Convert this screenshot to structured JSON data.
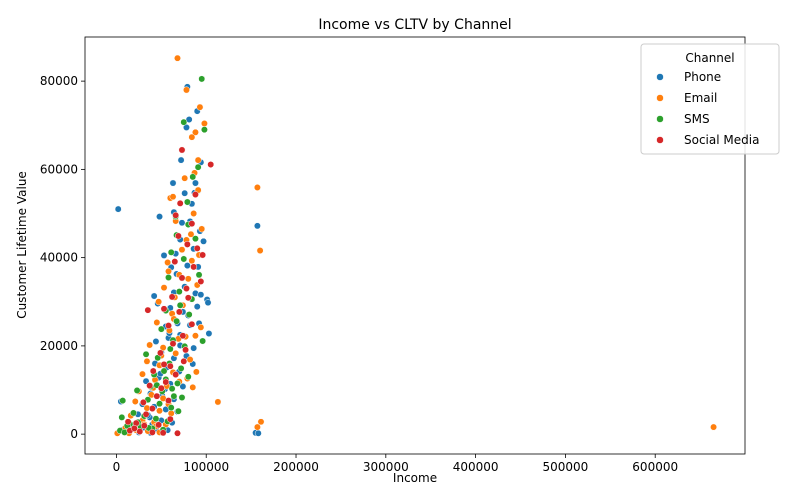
{
  "chart_data": {
    "type": "scatter",
    "title": "Income vs CLTV by Channel",
    "xlabel": "Income",
    "ylabel": "Customer Lifetime Value",
    "xlim": [
      -35000,
      700000
    ],
    "ylim": [
      -4500,
      90000
    ],
    "xticks": [
      0,
      100000,
      200000,
      300000,
      400000,
      500000,
      600000
    ],
    "yticks": [
      0,
      20000,
      40000,
      60000,
      80000
    ],
    "grid": false,
    "legend": {
      "title": "Channel",
      "placement": "top-right"
    },
    "series": [
      {
        "name": "Phone",
        "color": "#1f77b4",
        "points": [
          [
            2000,
            51000
          ],
          [
            79000,
            78700
          ],
          [
            81000,
            71300
          ],
          [
            78000,
            69500
          ],
          [
            90000,
            73200
          ],
          [
            94000,
            61600
          ],
          [
            72000,
            62100
          ],
          [
            63000,
            56900
          ],
          [
            76000,
            54600
          ],
          [
            88000,
            56900
          ],
          [
            87000,
            54700
          ],
          [
            91000,
            55200
          ],
          [
            48000,
            49300
          ],
          [
            64000,
            50300
          ],
          [
            73000,
            47900
          ],
          [
            82000,
            48200
          ],
          [
            93000,
            46000
          ],
          [
            97000,
            43700
          ],
          [
            53000,
            40500
          ],
          [
            71000,
            44100
          ],
          [
            86000,
            42000
          ],
          [
            61000,
            37800
          ],
          [
            79000,
            38200
          ],
          [
            91000,
            37900
          ],
          [
            157000,
            47200
          ],
          [
            42000,
            31300
          ],
          [
            64000,
            32100
          ],
          [
            76000,
            33400
          ],
          [
            88000,
            31900
          ],
          [
            101000,
            30500
          ],
          [
            102000,
            29800
          ],
          [
            60000,
            28600
          ],
          [
            74000,
            27700
          ],
          [
            90000,
            28900
          ],
          [
            55000,
            24400
          ],
          [
            68000,
            25100
          ],
          [
            82000,
            24700
          ],
          [
            103000,
            22800
          ],
          [
            44000,
            21000
          ],
          [
            58000,
            21800
          ],
          [
            71000,
            22500
          ],
          [
            86000,
            19500
          ],
          [
            50000,
            18500
          ],
          [
            64000,
            17200
          ],
          [
            78000,
            17700
          ],
          [
            43000,
            16000
          ],
          [
            56000,
            15100
          ],
          [
            70000,
            14200
          ],
          [
            85000,
            15900
          ],
          [
            33000,
            12000
          ],
          [
            47000,
            12800
          ],
          [
            60000,
            11400
          ],
          [
            74000,
            10800
          ],
          [
            38000,
            9200
          ],
          [
            51000,
            8700
          ],
          [
            64000,
            7900
          ],
          [
            29000,
            6800
          ],
          [
            42000,
            6200
          ],
          [
            55000,
            5600
          ],
          [
            68000,
            5100
          ],
          [
            5000,
            7400
          ],
          [
            24000,
            4500
          ],
          [
            37000,
            3800
          ],
          [
            50000,
            3100
          ],
          [
            62000,
            2600
          ],
          [
            18000,
            2000
          ],
          [
            31000,
            1500
          ],
          [
            44000,
            1200
          ],
          [
            57000,
            900
          ],
          [
            12000,
            600
          ],
          [
            25000,
            400
          ],
          [
            38000,
            300
          ],
          [
            155000,
            300
          ],
          [
            158000,
            200
          ],
          [
            8000,
            1100
          ],
          [
            46000,
            29600
          ],
          [
            67000,
            36300
          ],
          [
            84000,
            52200
          ],
          [
            94000,
            31600
          ],
          [
            59000,
            22900
          ],
          [
            80000,
            26900
          ],
          [
            92000,
            25100
          ],
          [
            66000,
            40900
          ],
          [
            49000,
            13700
          ],
          [
            71000,
            20100
          ],
          [
            54000,
            10200
          ],
          [
            35000,
            4300
          ],
          [
            60000,
            3500
          ],
          [
            20000,
            1100
          ],
          [
            40000,
            2200
          ]
        ]
      },
      {
        "name": "Email",
        "color": "#ff7f0e",
        "points": [
          [
            68000,
            85200
          ],
          [
            78000,
            78000
          ],
          [
            93000,
            74100
          ],
          [
            98000,
            70400
          ],
          [
            88000,
            68400
          ],
          [
            84000,
            67300
          ],
          [
            91000,
            62100
          ],
          [
            60000,
            53500
          ],
          [
            87000,
            59200
          ],
          [
            76000,
            58000
          ],
          [
            86000,
            50000
          ],
          [
            157000,
            55900
          ],
          [
            66000,
            48300
          ],
          [
            95000,
            46500
          ],
          [
            78000,
            44000
          ],
          [
            160000,
            41600
          ],
          [
            57000,
            38900
          ],
          [
            84000,
            39300
          ],
          [
            70000,
            36100
          ],
          [
            90000,
            33800
          ],
          [
            53000,
            33200
          ],
          [
            65000,
            31000
          ],
          [
            80000,
            35200
          ],
          [
            47000,
            30000
          ],
          [
            62000,
            27300
          ],
          [
            74000,
            29200
          ],
          [
            94000,
            24200
          ],
          [
            45000,
            25300
          ],
          [
            59000,
            23500
          ],
          [
            69000,
            21600
          ],
          [
            88000,
            22300
          ],
          [
            37000,
            20200
          ],
          [
            52000,
            19600
          ],
          [
            66000,
            18300
          ],
          [
            82000,
            16900
          ],
          [
            34000,
            16500
          ],
          [
            48000,
            15600
          ],
          [
            63000,
            14000
          ],
          [
            79000,
            12600
          ],
          [
            89000,
            14100
          ],
          [
            29000,
            13600
          ],
          [
            43000,
            12300
          ],
          [
            56000,
            10900
          ],
          [
            85000,
            10600
          ],
          [
            25000,
            9700
          ],
          [
            39000,
            8900
          ],
          [
            52000,
            8100
          ],
          [
            113000,
            7300
          ],
          [
            21000,
            7400
          ],
          [
            34000,
            5900
          ],
          [
            48000,
            5300
          ],
          [
            61000,
            4700
          ],
          [
            16000,
            4200
          ],
          [
            29000,
            3100
          ],
          [
            42000,
            2700
          ],
          [
            55000,
            2200
          ],
          [
            161000,
            2800
          ],
          [
            157000,
            1600
          ],
          [
            665000,
            1600
          ],
          [
            10000,
            1400
          ],
          [
            22000,
            900
          ],
          [
            35000,
            700
          ],
          [
            48000,
            400
          ],
          [
            1000,
            200
          ],
          [
            14000,
            200
          ],
          [
            58000,
            36900
          ],
          [
            73000,
            41800
          ],
          [
            83000,
            45300
          ],
          [
            92000,
            40600
          ],
          [
            64000,
            26100
          ],
          [
            77000,
            22100
          ],
          [
            50000,
            17800
          ],
          [
            70000,
            11900
          ],
          [
            41000,
            10500
          ],
          [
            58000,
            6800
          ],
          [
            31000,
            2200
          ],
          [
            26000,
            600
          ],
          [
            44000,
            1800
          ],
          [
            63000,
            53800
          ],
          [
            91000,
            55300
          ]
        ]
      },
      {
        "name": "SMS",
        "color": "#2ca02c",
        "points": [
          [
            95000,
            80500
          ],
          [
            75000,
            70700
          ],
          [
            98000,
            69000
          ],
          [
            91000,
            60500
          ],
          [
            85000,
            58300
          ],
          [
            79000,
            52600
          ],
          [
            67000,
            45100
          ],
          [
            88000,
            44300
          ],
          [
            61000,
            41200
          ],
          [
            75000,
            39700
          ],
          [
            92000,
            36100
          ],
          [
            58000,
            35500
          ],
          [
            70000,
            32300
          ],
          [
            84000,
            30600
          ],
          [
            55000,
            28000
          ],
          [
            67000,
            25600
          ],
          [
            81000,
            27100
          ],
          [
            96000,
            21100
          ],
          [
            50000,
            23800
          ],
          [
            63000,
            21300
          ],
          [
            76000,
            19900
          ],
          [
            33000,
            18100
          ],
          [
            46000,
            17300
          ],
          [
            59000,
            16000
          ],
          [
            72000,
            14900
          ],
          [
            42000,
            13500
          ],
          [
            55000,
            12400
          ],
          [
            68000,
            11500
          ],
          [
            80000,
            13000
          ],
          [
            38000,
            10800
          ],
          [
            51000,
            9700
          ],
          [
            64000,
            8600
          ],
          [
            73000,
            8300
          ],
          [
            23000,
            9900
          ],
          [
            35000,
            7800
          ],
          [
            48000,
            6900
          ],
          [
            61000,
            6000
          ],
          [
            69000,
            5200
          ],
          [
            7000,
            7600
          ],
          [
            19000,
            4800
          ],
          [
            31000,
            4100
          ],
          [
            44000,
            3500
          ],
          [
            57000,
            2900
          ],
          [
            6000,
            3800
          ],
          [
            15000,
            2300
          ],
          [
            27000,
            1700
          ],
          [
            40000,
            1300
          ],
          [
            52000,
            1000
          ],
          [
            4000,
            800
          ],
          [
            9000,
            400
          ],
          [
            66000,
            49300
          ],
          [
            80000,
            47500
          ],
          [
            71000,
            29200
          ],
          [
            60000,
            19300
          ],
          [
            53000,
            14300
          ],
          [
            45000,
            11100
          ],
          [
            62000,
            10300
          ],
          [
            24000,
            2700
          ],
          [
            36000,
            1400
          ],
          [
            12000,
            1900
          ]
        ]
      },
      {
        "name": "Social Media",
        "color": "#d62728",
        "points": [
          [
            73000,
            64400
          ],
          [
            105000,
            61100
          ],
          [
            88000,
            54300
          ],
          [
            71000,
            52300
          ],
          [
            66000,
            49600
          ],
          [
            84000,
            47700
          ],
          [
            79000,
            43000
          ],
          [
            96000,
            40600
          ],
          [
            65000,
            39100
          ],
          [
            86000,
            37900
          ],
          [
            94000,
            34600
          ],
          [
            73000,
            35400
          ],
          [
            62000,
            31100
          ],
          [
            80000,
            30900
          ],
          [
            35000,
            28100
          ],
          [
            53000,
            28400
          ],
          [
            70000,
            27700
          ],
          [
            84000,
            24900
          ],
          [
            58000,
            24600
          ],
          [
            74000,
            22300
          ],
          [
            63000,
            20500
          ],
          [
            77000,
            19100
          ],
          [
            49000,
            18400
          ],
          [
            60000,
            15400
          ],
          [
            53000,
            15800
          ],
          [
            75000,
            16500
          ],
          [
            41000,
            14300
          ],
          [
            66000,
            13500
          ],
          [
            37000,
            11000
          ],
          [
            50000,
            10400
          ],
          [
            45000,
            8600
          ],
          [
            58000,
            7600
          ],
          [
            30000,
            7200
          ],
          [
            40000,
            5800
          ],
          [
            33000,
            4500
          ],
          [
            13000,
            2800
          ],
          [
            22000,
            2500
          ],
          [
            31000,
            1900
          ],
          [
            15000,
            800
          ],
          [
            26000,
            600
          ],
          [
            40000,
            400
          ],
          [
            52000,
            300
          ],
          [
            68000,
            200
          ],
          [
            20000,
            1300
          ],
          [
            60000,
            3400
          ],
          [
            47000,
            2100
          ],
          [
            78000,
            33000
          ],
          [
            90000,
            42100
          ],
          [
            69000,
            44900
          ],
          [
            55000,
            11800
          ]
        ]
      }
    ]
  }
}
